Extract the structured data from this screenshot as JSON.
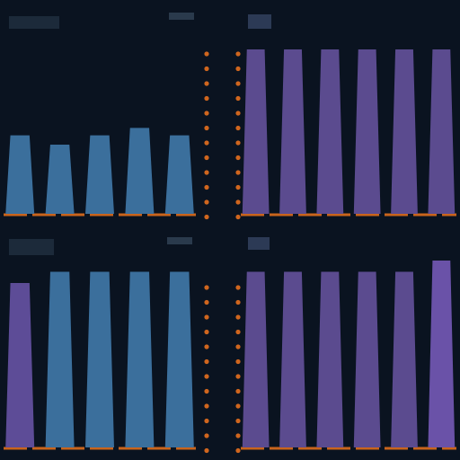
{
  "chart_data": [
    {
      "type": "bar",
      "categories": [
        null,
        null,
        null,
        null,
        null
      ],
      "values": [
        42,
        37,
        42,
        46,
        42
      ],
      "colors": [
        "#3b6f9c",
        "#3b6f9c",
        "#3b6f9c",
        "#3b6f9c",
        "#3b6f9c"
      ],
      "ylim": [
        0,
        100
      ]
    },
    {
      "type": "bar",
      "categories": [
        null,
        null,
        null,
        null,
        null,
        null
      ],
      "values": [
        88,
        88,
        88,
        88,
        88,
        88
      ],
      "colors": [
        "#5b4b8f",
        "#5b4b8f",
        "#5b4b8f",
        "#5b4b8f",
        "#5b4b8f",
        "#5b4b8f"
      ],
      "ylim": [
        0,
        100
      ]
    },
    {
      "type": "bar",
      "categories": [
        null,
        null,
        null,
        null,
        null
      ],
      "values": [
        88,
        94,
        94,
        94,
        94
      ],
      "colors": [
        "#5d4c97",
        "#3b6f9c",
        "#3b6f9c",
        "#3b6f9c",
        "#3b6f9c"
      ],
      "ylim": [
        0,
        100
      ]
    },
    {
      "type": "bar",
      "categories": [
        null,
        null,
        null,
        null,
        null,
        null
      ],
      "values": [
        94,
        94,
        94,
        94,
        94,
        100
      ],
      "colors": [
        "#5b4b8f",
        "#5b4b8f",
        "#5b4b8f",
        "#5b4b8f",
        "#5b4b8f",
        "#6a52a8"
      ],
      "ylim": [
        0,
        100
      ]
    }
  ]
}
